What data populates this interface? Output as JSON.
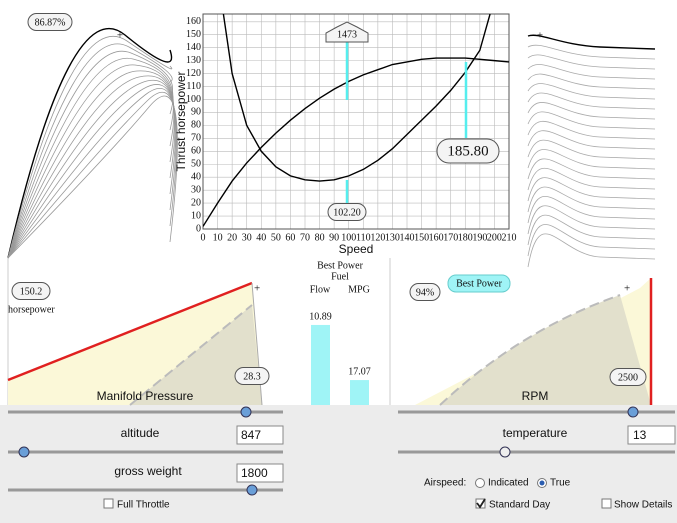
{
  "left_panel": {
    "label": "86.87%"
  },
  "chart_data": {
    "type": "line",
    "xlabel": "Speed",
    "ylabel": "Thrust horsepower",
    "xlim": [
      0,
      210
    ],
    "ylim": [
      0,
      166
    ],
    "xticks": [
      0,
      10,
      20,
      30,
      40,
      50,
      60,
      70,
      80,
      90,
      100,
      110,
      120,
      130,
      140,
      150,
      160,
      170,
      180,
      190,
      200,
      210
    ],
    "yticks": [
      0,
      10,
      20,
      30,
      40,
      50,
      60,
      70,
      80,
      90,
      100,
      110,
      120,
      130,
      140,
      150,
      160
    ],
    "grid": true,
    "series": [
      {
        "color": "#000000",
        "x": [
          0,
          10,
          20,
          30,
          40,
          50,
          60,
          70,
          80,
          90,
          100,
          110,
          120,
          130,
          140,
          150,
          160,
          170,
          180,
          190,
          200,
          210
        ],
        "values": [
          2,
          20,
          37,
          51,
          63,
          74,
          84,
          93,
          101,
          108,
          114,
          119,
          123,
          127,
          129,
          131,
          132,
          132,
          132,
          131,
          130,
          129
        ]
      },
      {
        "color": "#000000",
        "x": [
          14,
          20,
          30,
          40,
          50,
          60,
          70,
          80,
          90,
          100,
          110,
          120,
          130,
          140,
          150,
          160,
          170,
          180,
          190,
          197
        ],
        "values": [
          166,
          120,
          80,
          60,
          48,
          41,
          38,
          37,
          38,
          41,
          46,
          53,
          62,
          73,
          84,
          95,
          107,
          121,
          138,
          166
        ]
      }
    ],
    "annotations": [
      "1473",
      "185.80",
      "102.20"
    ]
  },
  "manifold": {
    "power": "150.2",
    "unit": "horsepower",
    "pressure": "28.3",
    "title": "Manifold Pressure"
  },
  "fuel": {
    "title": "Best Power",
    "subtitle": "Fuel",
    "columns": [
      "Flow",
      "MPG"
    ],
    "values": [
      10.89,
      17.07
    ]
  },
  "rpm": {
    "percent": "94%",
    "button": "Best Power",
    "value": "2500",
    "title": "RPM"
  },
  "controls": {
    "altitude": {
      "label": "altitude",
      "value": "847"
    },
    "gross_weight": {
      "label": "gross weight",
      "value": "1800"
    },
    "full_throttle": "Full Throttle",
    "temperature": {
      "label": "temperature",
      "value": "13"
    },
    "airspeed": {
      "label": "Airspeed:",
      "options": [
        "Indicated",
        "True"
      ]
    },
    "standard_day": "Standard Day",
    "show_details": "Show Details"
  }
}
